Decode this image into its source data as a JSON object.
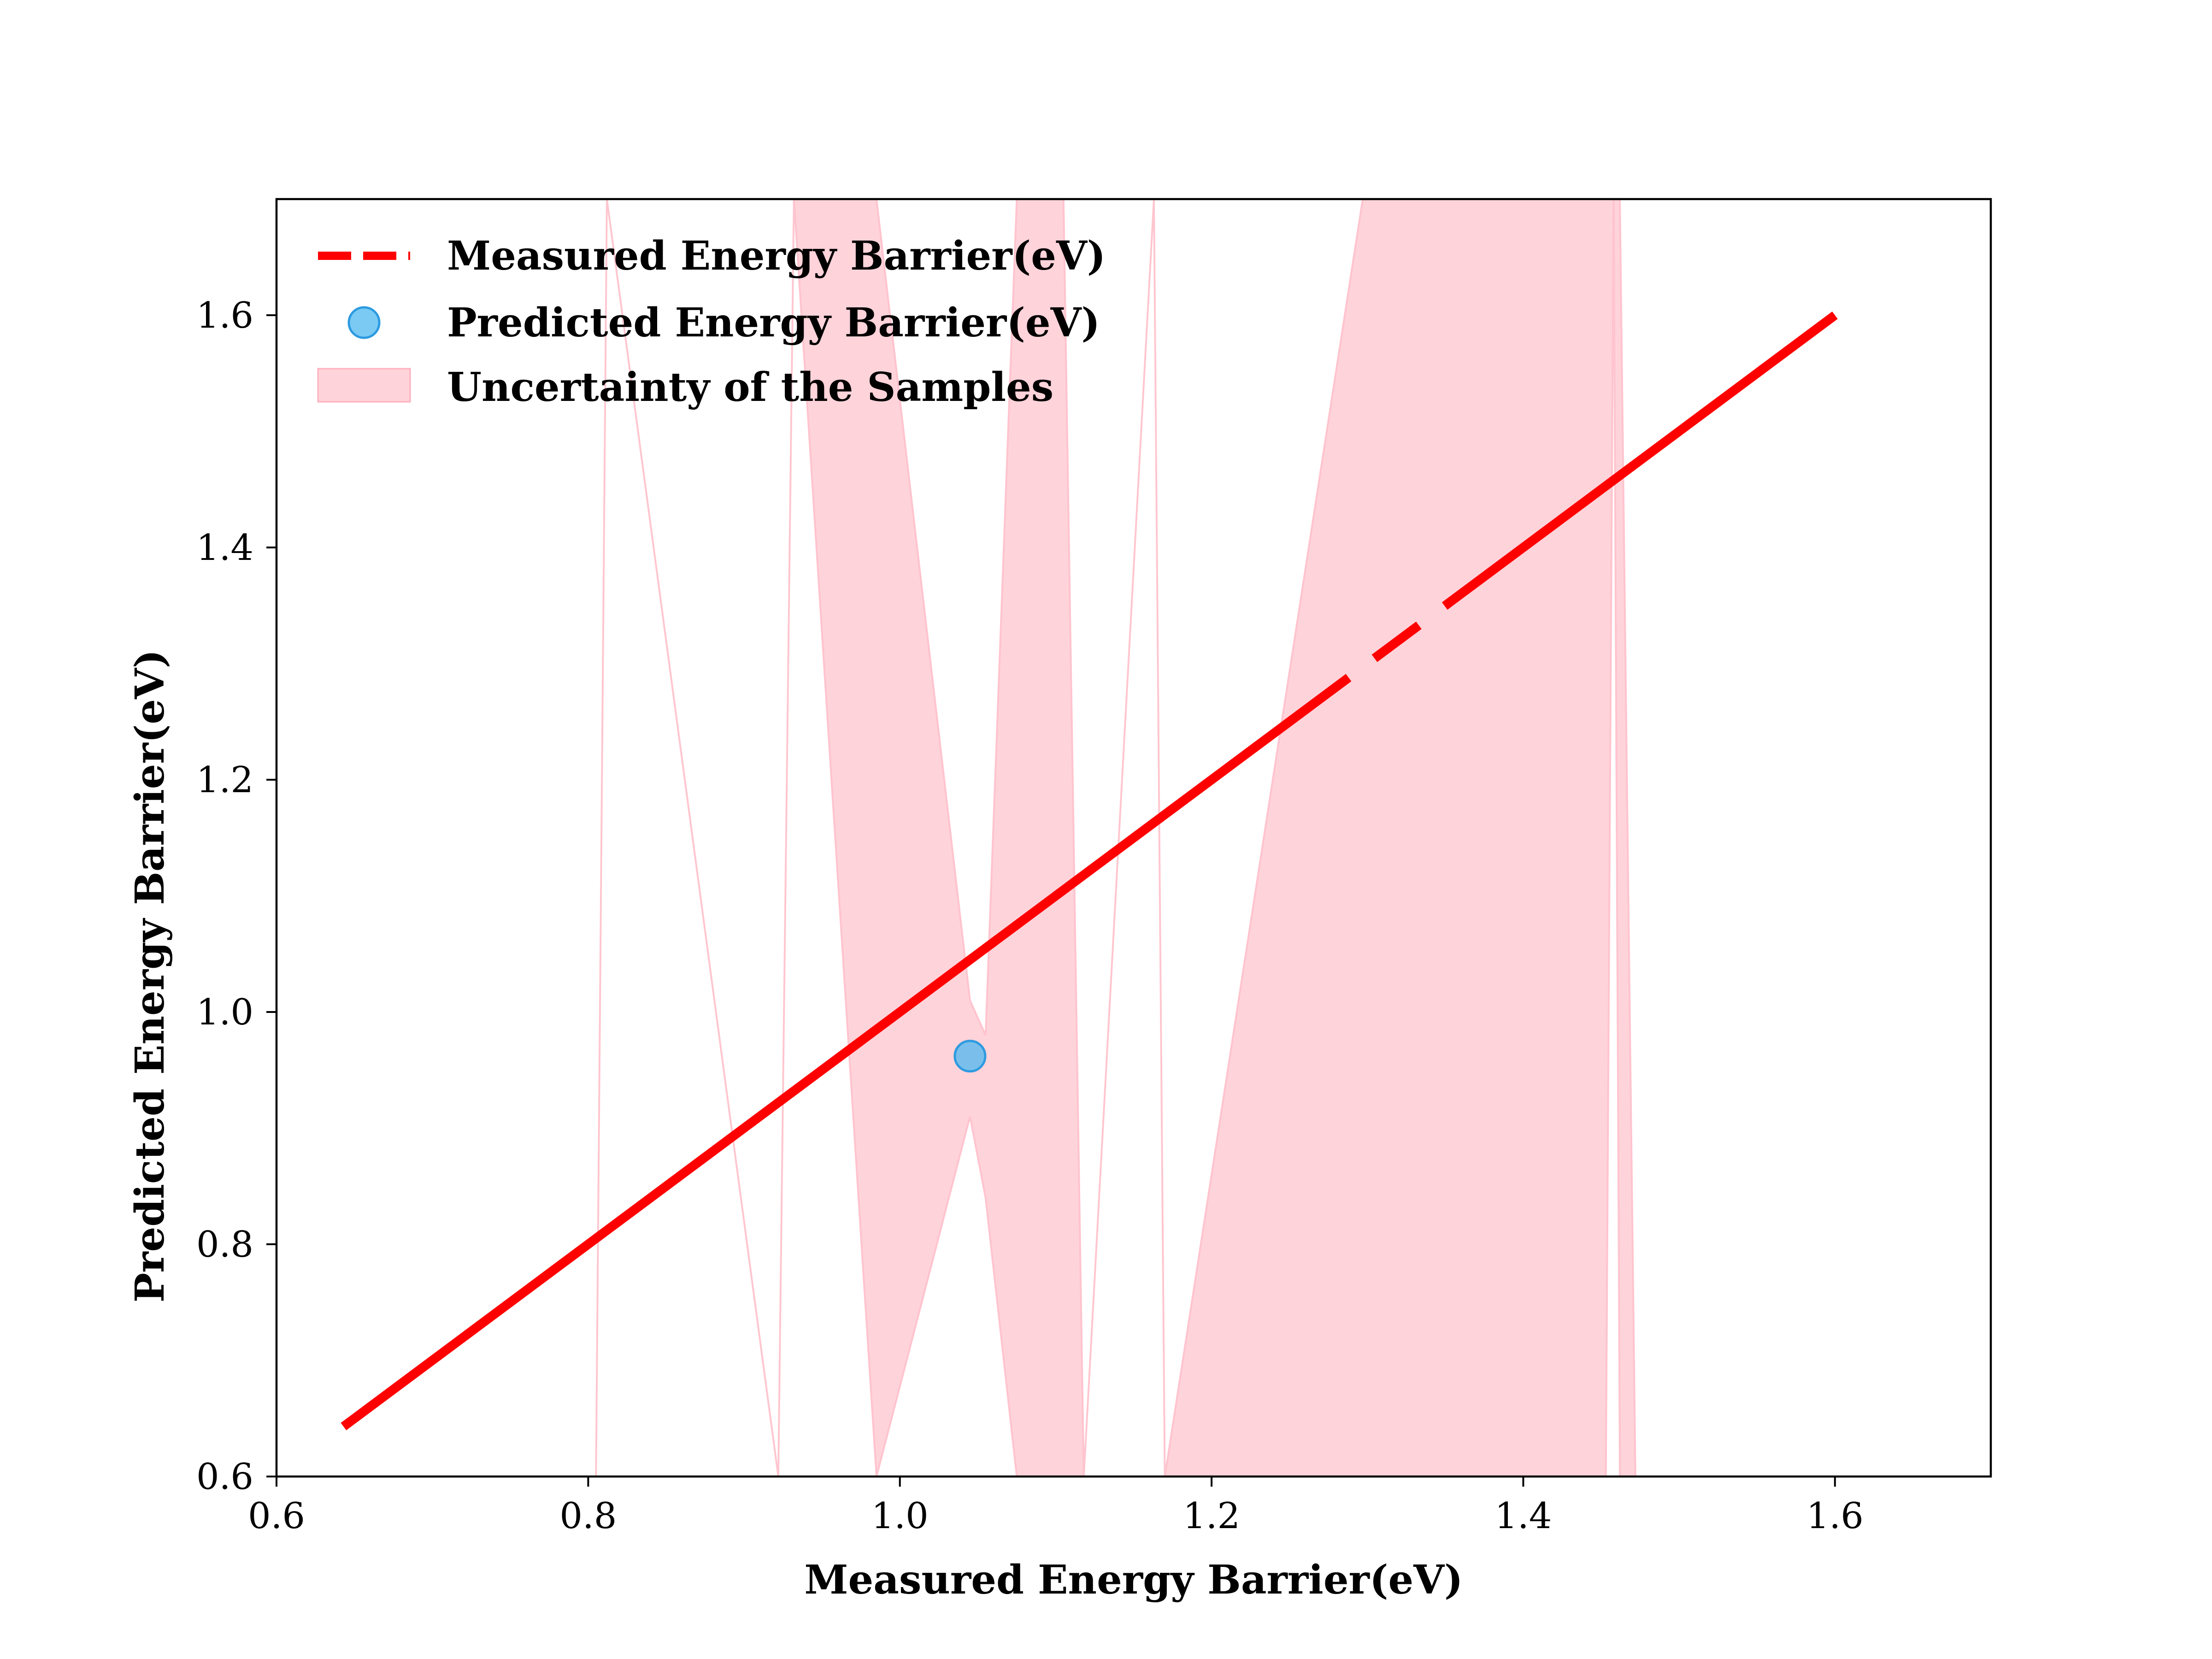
{
  "chart_data": {
    "type": "scatter",
    "title": "",
    "xlabel": "Measured Energy Barrier(eV)",
    "ylabel": "Predicted Energy Barrier(eV)",
    "xlim": [
      0.6,
      1.7
    ],
    "ylim": [
      0.6,
      1.7
    ],
    "xticks": [
      "0.6",
      "0.8",
      "1.0",
      "1.2",
      "1.4",
      "1.6"
    ],
    "yticks": [
      "0.6",
      "0.8",
      "1.0",
      "1.2",
      "1.4",
      "1.6"
    ],
    "grid": false,
    "legend_position": "top-left",
    "series": [
      {
        "name": "Measured Energy Barrier(eV)",
        "kind": "line",
        "style": "dashed",
        "color": "#ff0000",
        "x": [
          0.643,
          1.6
        ],
        "y": [
          0.643,
          1.6
        ]
      },
      {
        "name": "Predicted Energy Barrier(eV)",
        "kind": "scatter",
        "color": "#4db8f0",
        "x": [
          1.045
        ],
        "y": [
          0.962
        ]
      },
      {
        "name": "Uncertainty of the Samples",
        "kind": "band",
        "color": "#ffc0cb",
        "x": [
          0.805,
          0.812,
          0.922,
          0.932,
          0.985,
          1.045,
          1.055,
          1.075,
          1.082,
          1.095,
          1.105,
          1.118,
          1.163,
          1.17,
          1.297,
          1.303,
          1.345,
          1.357,
          1.453,
          1.458,
          1.462,
          1.472
        ],
        "lower": [
          0.6,
          1.7,
          0.6,
          1.7,
          0.6,
          0.91,
          0.84,
          0.6,
          0.6,
          0.6,
          0.6,
          0.6,
          1.7,
          0.6,
          0.6,
          0.6,
          0.6,
          0.6,
          0.6,
          1.7,
          0.6,
          0.6
        ],
        "upper": [
          0.6,
          1.7,
          0.6,
          1.7,
          1.7,
          1.01,
          0.98,
          1.7,
          1.7,
          1.7,
          1.7,
          0.6,
          1.7,
          0.6,
          1.7,
          1.7,
          1.7,
          1.7,
          1.7,
          1.7,
          1.7,
          0.6
        ]
      }
    ]
  },
  "legend": {
    "items": [
      {
        "label": "Measured Energy Barrier(eV)",
        "marker": "dashed-line",
        "color": "#ff0000"
      },
      {
        "label": "Predicted Energy Barrier(eV)",
        "marker": "circle",
        "color": "#4db8f0"
      },
      {
        "label": "Uncertainty of the Samples",
        "marker": "patch",
        "color": "#ffc0cb"
      }
    ]
  }
}
